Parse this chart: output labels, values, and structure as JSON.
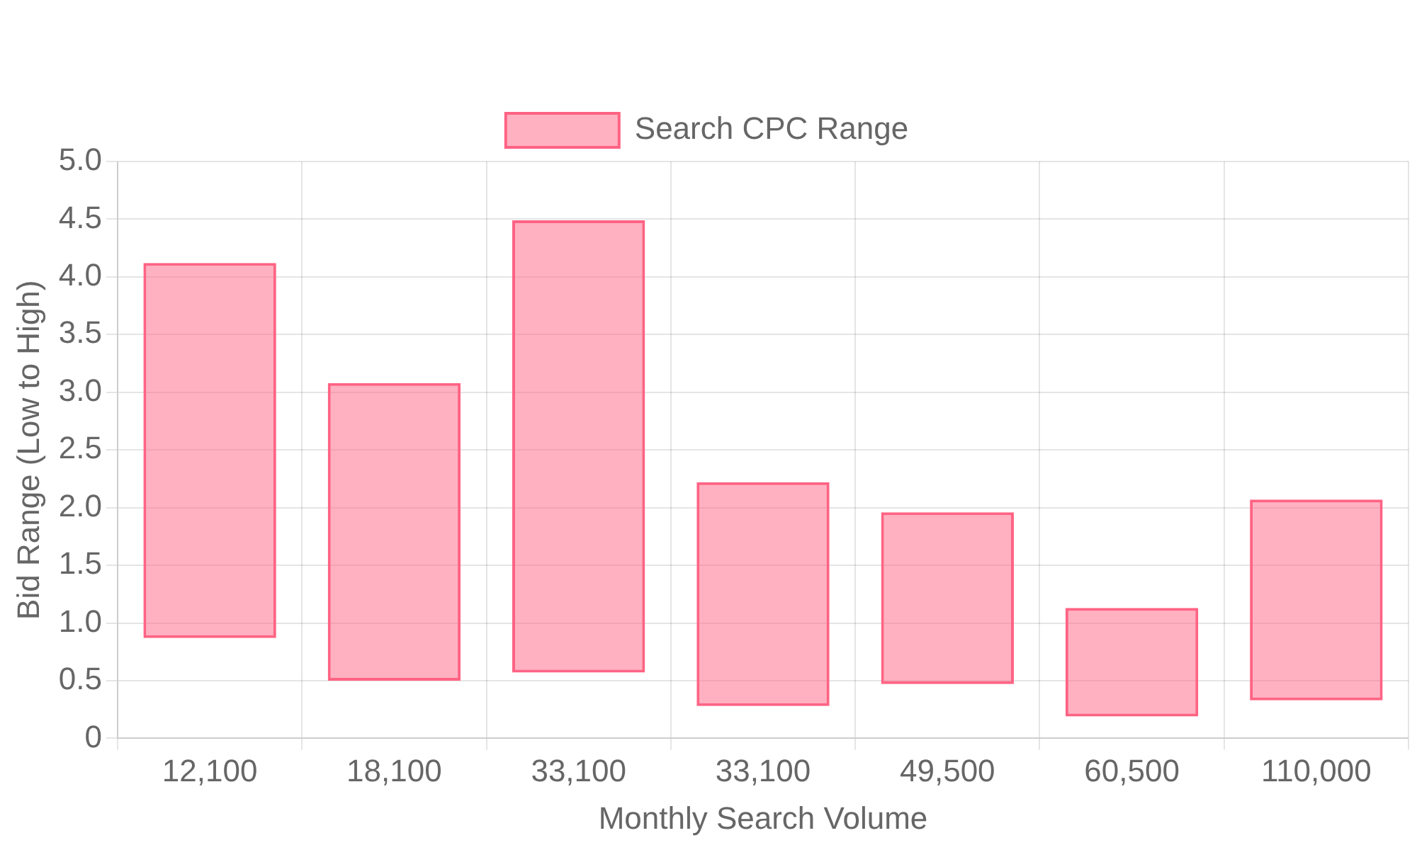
{
  "chart_data": {
    "type": "bar",
    "categories": [
      "12,100",
      "18,100",
      "33,100",
      "33,100",
      "49,500",
      "60,500",
      "110,000"
    ],
    "series": [
      {
        "name": "Search CPC Range",
        "color": "#ff6384",
        "base": [
          0.87,
          0.5,
          0.57,
          0.28,
          0.47,
          0.19,
          0.33
        ],
        "values": [
          3.25,
          2.58,
          3.92,
          1.94,
          1.49,
          0.94,
          1.74
        ]
      }
    ],
    "xlabel": "Monthly Search Volume",
    "ylabel": "Bid Range (Low to High)",
    "ylim": [
      0,
      5
    ],
    "yticks": [
      0,
      {
        "value": 0.5,
        "label": "0.5"
      },
      {
        "value": 1,
        "label": "1.0"
      },
      {
        "value": 1.5,
        "label": "1.5"
      },
      {
        "value": 2,
        "label": "2.0"
      },
      {
        "value": 2.5,
        "label": "2.5"
      },
      {
        "value": 3,
        "label": "3.0"
      },
      {
        "value": 3.5,
        "label": "3.5"
      },
      {
        "value": 4,
        "label": "4.0"
      },
      {
        "value": 4.5,
        "label": "4.5"
      },
      {
        "value": 5,
        "label": "5.0"
      }
    ],
    "grid": true,
    "legend": "top"
  }
}
